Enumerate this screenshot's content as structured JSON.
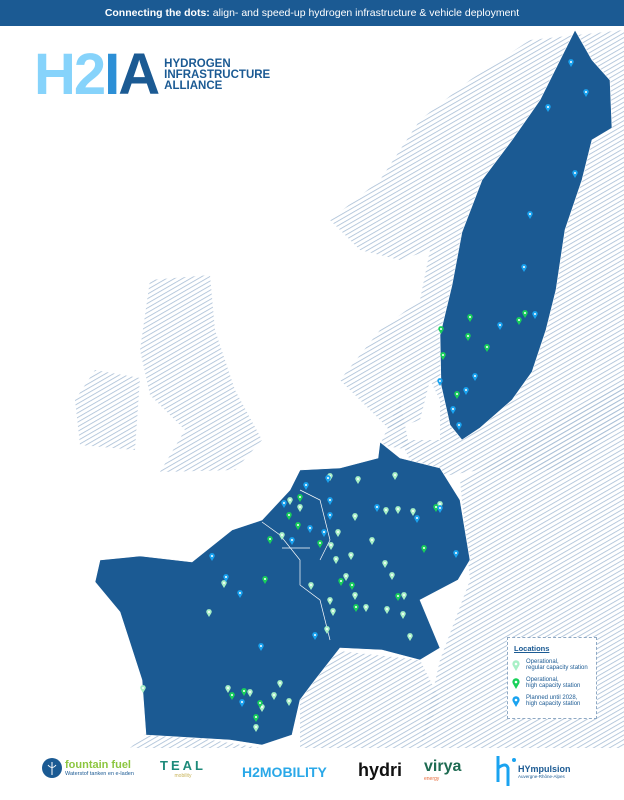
{
  "header": {
    "bold": "Connecting the dots:",
    "text": " align- and speed-up hydrogen infrastructure & vehicle deployment"
  },
  "logo": {
    "h2": "H2",
    "i": "I",
    "a": "A",
    "line1": "HYDROGEN",
    "line2": "INFRASTRUCTURE",
    "line3": "ALLIANCE"
  },
  "colors": {
    "highlight_land": "#1b5a93",
    "hatched_land": "#a7bdd5",
    "regular": "#a8f0c6",
    "high": "#19d15a",
    "planned": "#1aa3f0"
  },
  "legend": {
    "title": "Locations",
    "items": [
      {
        "type": "regular",
        "line1": "Operational,",
        "line2": "regular capacity station",
        "icon": "map-pin-icon"
      },
      {
        "type": "high",
        "line1": "Operational,",
        "line2": "high capacity station",
        "icon": "map-pin-icon"
      },
      {
        "type": "planned",
        "line1": "Planned until 2028,",
        "line2": "high capacity station",
        "icon": "map-pin-icon"
      }
    ]
  },
  "partners": [
    {
      "name": "fountain fuel",
      "tagline": "Waterstof tanken en e-laden"
    },
    {
      "name": "TEAL",
      "tagline": "mobility"
    },
    {
      "name": "H2MOBILITY",
      "tagline": ""
    },
    {
      "name": "hydri",
      "tagline": ""
    },
    {
      "name": "virya",
      "tagline": "energy"
    },
    {
      "name": "HYmpulsion",
      "tagline": "Auvergne-Rhône-Alpes"
    }
  ]
}
